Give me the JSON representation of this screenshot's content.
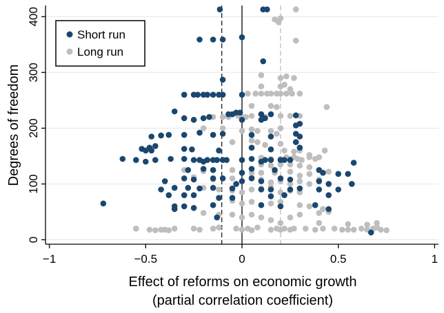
{
  "chart_data": {
    "type": "scatter",
    "xlabel_line1": "Effect of reforms on economic growth",
    "xlabel_line2": "(partial correlation coefficient)",
    "ylabel": "Degrees of freedom",
    "xlim": [
      -1.02,
      1.02
    ],
    "ylim": [
      -8,
      420
    ],
    "xticks": [
      -1,
      -0.5,
      0,
      0.5,
      1
    ],
    "xtick_labels": [
      "−1",
      "−0.5",
      "0",
      "0.5",
      "1"
    ],
    "yticks": [
      0,
      100,
      200,
      300,
      400
    ],
    "ytick_labels": [
      "0",
      "100",
      "200",
      "300",
      "400"
    ],
    "grid": "horizontal",
    "legend_position": "top-left",
    "reference_lines": [
      {
        "x": -0.105,
        "style": "dashed",
        "color": "#1b1b1b"
      },
      {
        "x": 0.0,
        "style": "solid",
        "color": "#000000"
      },
      {
        "x": 0.2,
        "style": "dashed",
        "color": "#bdbdbd"
      }
    ],
    "series": [
      {
        "name": "Short run",
        "color": "#1a476f",
        "points": [
          [
            -0.115,
            413
          ],
          [
            0.11,
            413
          ],
          [
            0.13,
            413
          ],
          [
            -0.22,
            359
          ],
          [
            -0.15,
            359
          ],
          [
            -0.1,
            359
          ],
          [
            0.0,
            363
          ],
          [
            0.11,
            320
          ],
          [
            -0.1,
            287
          ],
          [
            -0.3,
            260
          ],
          [
            -0.25,
            260
          ],
          [
            -0.23,
            260
          ],
          [
            -0.2,
            260
          ],
          [
            -0.18,
            260
          ],
          [
            -0.15,
            260
          ],
          [
            -0.12,
            260
          ],
          [
            -0.1,
            260
          ],
          [
            0.0,
            260
          ],
          [
            -0.35,
            230
          ],
          [
            -0.07,
            225
          ],
          [
            -0.05,
            225
          ],
          [
            -0.03,
            228
          ],
          [
            -0.01,
            228
          ],
          [
            0.1,
            225
          ],
          [
            0.15,
            225
          ],
          [
            -0.3,
            218
          ],
          [
            -0.25,
            215
          ],
          [
            -0.2,
            218
          ],
          [
            -0.17,
            220
          ],
          [
            0.0,
            215
          ],
          [
            0.1,
            215
          ],
          [
            0.12,
            218
          ],
          [
            0.28,
            205
          ],
          [
            0.3,
            208
          ],
          [
            0.28,
            223
          ],
          [
            -0.47,
            185
          ],
          [
            -0.42,
            187
          ],
          [
            -0.38,
            188
          ],
          [
            -0.3,
            188
          ],
          [
            -0.22,
            192
          ],
          [
            -0.15,
            188
          ],
          [
            -0.1,
            190
          ],
          [
            0.05,
            188
          ],
          [
            0.15,
            185
          ],
          [
            0.28,
            190
          ],
          [
            0.3,
            185
          ],
          [
            0.28,
            175
          ],
          [
            -0.48,
            165
          ],
          [
            -0.5,
            160
          ],
          [
            -0.52,
            163
          ],
          [
            -0.47,
            160
          ],
          [
            -0.45,
            168
          ],
          [
            -0.3,
            163
          ],
          [
            -0.26,
            162
          ],
          [
            -0.12,
            160
          ],
          [
            0.05,
            165
          ],
          [
            0.15,
            162
          ],
          [
            0.3,
            165
          ],
          [
            -0.62,
            145
          ],
          [
            -0.55,
            143
          ],
          [
            -0.5,
            140
          ],
          [
            -0.45,
            143
          ],
          [
            -0.37,
            145
          ],
          [
            -0.3,
            145
          ],
          [
            -0.25,
            143
          ],
          [
            -0.22,
            143
          ],
          [
            -0.2,
            140
          ],
          [
            -0.18,
            143
          ],
          [
            -0.15,
            143
          ],
          [
            -0.13,
            143
          ],
          [
            -0.1,
            143
          ],
          [
            -0.08,
            143
          ],
          [
            0.0,
            143
          ],
          [
            0.05,
            145
          ],
          [
            0.1,
            140
          ],
          [
            0.12,
            143
          ],
          [
            0.15,
            143
          ],
          [
            0.2,
            143
          ],
          [
            0.22,
            143
          ],
          [
            0.25,
            143
          ],
          [
            -0.28,
            125
          ],
          [
            -0.2,
            127
          ],
          [
            -0.15,
            125
          ],
          [
            0.0,
            120
          ],
          [
            0.05,
            127
          ],
          [
            0.17,
            125
          ],
          [
            0.4,
            125
          ],
          [
            0.42,
            120
          ],
          [
            0.5,
            118
          ],
          [
            0.55,
            118
          ],
          [
            0.58,
            138
          ],
          [
            -0.4,
            105
          ],
          [
            -0.3,
            110
          ],
          [
            -0.25,
            108
          ],
          [
            -0.15,
            110
          ],
          [
            -0.1,
            110
          ],
          [
            -0.03,
            100
          ],
          [
            0.0,
            105
          ],
          [
            0.05,
            110
          ],
          [
            0.1,
            105
          ],
          [
            0.2,
            110
          ],
          [
            0.25,
            108
          ],
          [
            0.4,
            105
          ],
          [
            0.45,
            100
          ],
          [
            0.57,
            100
          ],
          [
            -0.42,
            90
          ],
          [
            -0.35,
            93
          ],
          [
            -0.28,
            93
          ],
          [
            -0.22,
            92
          ],
          [
            -0.15,
            93
          ],
          [
            -0.05,
            92
          ],
          [
            0.1,
            90
          ],
          [
            0.15,
            90
          ],
          [
            0.25,
            90
          ],
          [
            0.3,
            92
          ],
          [
            0.4,
            90
          ],
          [
            0.5,
            90
          ],
          [
            -0.38,
            80
          ],
          [
            -0.3,
            80
          ],
          [
            -0.25,
            80
          ],
          [
            -0.12,
            75
          ],
          [
            -0.05,
            75
          ],
          [
            0.15,
            78
          ],
          [
            0.22,
            80
          ],
          [
            0.45,
            80
          ],
          [
            -0.72,
            65
          ],
          [
            -0.35,
            60
          ],
          [
            -0.35,
            55
          ],
          [
            -0.3,
            60
          ],
          [
            -0.25,
            57
          ],
          [
            -0.15,
            62
          ],
          [
            0.1,
            62
          ],
          [
            0.2,
            60
          ],
          [
            0.38,
            62
          ],
          [
            0.45,
            55
          ],
          [
            -0.13,
            40
          ],
          [
            0.67,
            13
          ]
        ]
      },
      {
        "name": "Long run",
        "color": "#bebebe",
        "points": [
          [
            0.28,
            413
          ],
          [
            0.17,
            395
          ],
          [
            0.19,
            390
          ],
          [
            0.2,
            397
          ],
          [
            0.28,
            357
          ],
          [
            0.1,
            295
          ],
          [
            0.2,
            290
          ],
          [
            0.23,
            293
          ],
          [
            0.27,
            290
          ],
          [
            0.1,
            275
          ],
          [
            0.2,
            275
          ],
          [
            0.22,
            278
          ],
          [
            0.25,
            270
          ],
          [
            0.03,
            262
          ],
          [
            0.07,
            262
          ],
          [
            0.1,
            262
          ],
          [
            0.13,
            262
          ],
          [
            0.15,
            262
          ],
          [
            0.18,
            262
          ],
          [
            0.2,
            262
          ],
          [
            0.23,
            262
          ],
          [
            0.26,
            262
          ],
          [
            0.3,
            262
          ],
          [
            0.05,
            240
          ],
          [
            0.15,
            240
          ],
          [
            0.18,
            238
          ],
          [
            0.44,
            238
          ],
          [
            -0.15,
            220
          ],
          [
            -0.1,
            220
          ],
          [
            -0.07,
            220
          ],
          [
            -0.05,
            225
          ],
          [
            -0.02,
            222
          ],
          [
            0.0,
            220
          ],
          [
            0.02,
            220
          ],
          [
            0.05,
            222
          ],
          [
            0.12,
            220
          ],
          [
            0.2,
            222
          ],
          [
            0.25,
            222
          ],
          [
            0.3,
            222
          ],
          [
            -0.2,
            200
          ],
          [
            -0.1,
            200
          ],
          [
            0.0,
            195
          ],
          [
            0.05,
            198
          ],
          [
            0.08,
            195
          ],
          [
            0.15,
            195
          ],
          [
            0.2,
            200
          ],
          [
            0.18,
            190
          ],
          [
            -0.05,
            175
          ],
          [
            0.05,
            178
          ],
          [
            0.08,
            175
          ],
          [
            0.12,
            170
          ],
          [
            0.2,
            172
          ],
          [
            0.3,
            165
          ],
          [
            0.22,
            160
          ],
          [
            0.27,
            158
          ],
          [
            0.3,
            160
          ],
          [
            0.35,
            152
          ],
          [
            0.43,
            160
          ],
          [
            0.1,
            147
          ],
          [
            0.15,
            145
          ],
          [
            0.2,
            145
          ],
          [
            0.23,
            148
          ],
          [
            0.25,
            145
          ],
          [
            0.27,
            148
          ],
          [
            0.29,
            145
          ],
          [
            0.31,
            143
          ],
          [
            0.35,
            148
          ],
          [
            0.38,
            145
          ],
          [
            0.4,
            148
          ],
          [
            0.1,
            135
          ],
          [
            0.15,
            133
          ],
          [
            0.2,
            135
          ],
          [
            0.25,
            135
          ],
          [
            0.3,
            133
          ],
          [
            0.35,
            130
          ],
          [
            -0.3,
            125
          ],
          [
            -0.2,
            123
          ],
          [
            -0.05,
            125
          ],
          [
            0.05,
            120
          ],
          [
            0.1,
            120
          ],
          [
            0.17,
            120
          ],
          [
            0.25,
            122
          ],
          [
            0.3,
            115
          ],
          [
            0.35,
            118
          ],
          [
            0.45,
            122
          ],
          [
            -0.25,
            112
          ],
          [
            -0.15,
            108
          ],
          [
            -0.05,
            110
          ],
          [
            0.05,
            112
          ],
          [
            0.1,
            108
          ],
          [
            0.15,
            103
          ],
          [
            0.2,
            105
          ],
          [
            0.25,
            100
          ],
          [
            0.3,
            105
          ],
          [
            0.35,
            100
          ],
          [
            0.4,
            108
          ],
          [
            -0.2,
            93
          ],
          [
            -0.12,
            90
          ],
          [
            -0.05,
            88
          ],
          [
            0.0,
            85
          ],
          [
            0.05,
            90
          ],
          [
            0.1,
            92
          ],
          [
            0.15,
            95
          ],
          [
            0.2,
            85
          ],
          [
            0.25,
            88
          ],
          [
            0.3,
            85
          ],
          [
            -0.05,
            70
          ],
          [
            0.0,
            65
          ],
          [
            0.05,
            68
          ],
          [
            0.15,
            65
          ],
          [
            0.2,
            68
          ],
          [
            0.3,
            62
          ],
          [
            0.35,
            60
          ],
          [
            0.42,
            55
          ],
          [
            0.45,
            50
          ],
          [
            -0.2,
            48
          ],
          [
            -0.12,
            45
          ],
          [
            -0.05,
            45
          ],
          [
            0.0,
            40
          ],
          [
            0.05,
            45
          ],
          [
            0.1,
            40
          ],
          [
            0.15,
            35
          ],
          [
            0.25,
            40
          ],
          [
            0.3,
            45
          ],
          [
            0.4,
            48
          ],
          [
            0.2,
            30
          ],
          [
            -0.55,
            20
          ],
          [
            -0.48,
            18
          ],
          [
            -0.45,
            17
          ],
          [
            -0.42,
            18
          ],
          [
            -0.4,
            18
          ],
          [
            -0.38,
            17
          ],
          [
            -0.35,
            20
          ],
          [
            -0.25,
            20
          ],
          [
            -0.22,
            18
          ],
          [
            -0.15,
            20
          ],
          [
            -0.12,
            22
          ],
          [
            -0.03,
            20
          ],
          [
            0.0,
            18
          ],
          [
            0.03,
            20
          ],
          [
            0.05,
            17
          ],
          [
            0.08,
            22
          ],
          [
            0.15,
            18
          ],
          [
            0.18,
            20
          ],
          [
            0.2,
            18
          ],
          [
            0.22,
            20
          ],
          [
            0.25,
            18
          ],
          [
            0.27,
            20
          ],
          [
            0.33,
            20
          ],
          [
            0.38,
            18
          ],
          [
            0.42,
            20
          ],
          [
            0.48,
            20
          ],
          [
            0.52,
            18
          ],
          [
            0.55,
            18
          ],
          [
            0.58,
            18
          ],
          [
            0.62,
            20
          ],
          [
            0.65,
            18
          ],
          [
            0.68,
            20
          ],
          [
            0.7,
            22
          ],
          [
            0.72,
            18
          ],
          [
            0.75,
            17
          ],
          [
            0.4,
            30
          ],
          [
            0.55,
            28
          ],
          [
            0.65,
            27
          ],
          [
            0.7,
            30
          ]
        ]
      }
    ]
  }
}
